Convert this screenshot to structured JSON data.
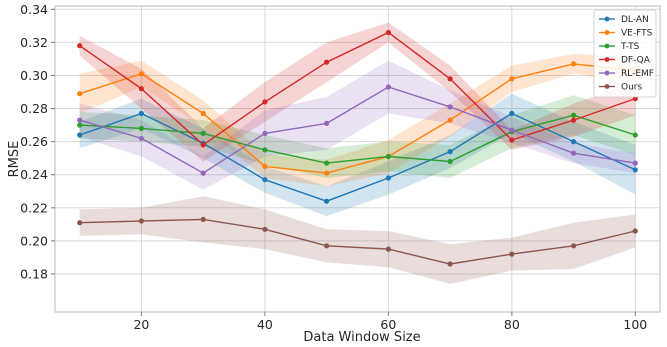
{
  "chart_data": {
    "type": "line",
    "title": "",
    "xlabel": "Data Window Size",
    "ylabel": "RMSE",
    "x": [
      10,
      20,
      30,
      40,
      50,
      60,
      70,
      80,
      90,
      100
    ],
    "xlim": [
      6,
      104
    ],
    "ylim": [
      0.157,
      0.342
    ],
    "xticks": [
      20,
      40,
      60,
      80,
      100
    ],
    "yticks": [
      0.18,
      0.2,
      0.22,
      0.24,
      0.26,
      0.28,
      0.3,
      0.32,
      0.34
    ],
    "xtick_labels": [
      "20",
      "40",
      "60",
      "80",
      "100"
    ],
    "ytick_labels": [
      "0.18",
      "0.20",
      "0.22",
      "0.24",
      "0.26",
      "0.28",
      "0.30",
      "0.32",
      "0.34"
    ],
    "grid": true,
    "legend_position": "top-right",
    "series": [
      {
        "name": "DL-AN",
        "color": "#1f77b4",
        "values": [
          0.264,
          0.277,
          0.259,
          0.237,
          0.224,
          0.238,
          0.254,
          0.277,
          0.26,
          0.243
        ],
        "band": [
          0.008,
          0.009,
          0.009,
          0.008,
          0.009,
          0.01,
          0.01,
          0.012,
          0.012,
          0.015
        ]
      },
      {
        "name": "VE-FTS",
        "color": "#ff7f0e",
        "values": [
          0.289,
          0.301,
          0.277,
          0.245,
          0.241,
          0.251,
          0.273,
          0.298,
          0.307,
          0.303
        ],
        "band": [
          0.012,
          0.008,
          0.008,
          0.007,
          0.008,
          0.01,
          0.01,
          0.008,
          0.006,
          0.008
        ]
      },
      {
        "name": "T-TS",
        "color": "#2ca02c",
        "values": [
          0.27,
          0.268,
          0.265,
          0.255,
          0.247,
          0.251,
          0.248,
          0.266,
          0.276,
          0.264
        ],
        "band": [
          0.008,
          0.008,
          0.008,
          0.009,
          0.009,
          0.009,
          0.01,
          0.01,
          0.012,
          0.012
        ]
      },
      {
        "name": "DF-QA",
        "color": "#d62728",
        "values": [
          0.318,
          0.292,
          0.258,
          0.284,
          0.308,
          0.326,
          0.298,
          0.261,
          0.273,
          0.286
        ],
        "band": [
          0.006,
          0.012,
          0.01,
          0.012,
          0.012,
          0.006,
          0.008,
          0.006,
          0.01,
          0.01
        ]
      },
      {
        "name": "RL-EMF",
        "color": "#9467bd",
        "values": [
          0.273,
          0.262,
          0.241,
          0.265,
          0.271,
          0.293,
          0.281,
          0.267,
          0.253,
          0.247
        ],
        "band": [
          0.01,
          0.011,
          0.01,
          0.014,
          0.016,
          0.016,
          0.01,
          0.008,
          0.006,
          0.006
        ]
      },
      {
        "name": "Ours",
        "color": "#8c564b",
        "values": [
          0.211,
          0.212,
          0.213,
          0.207,
          0.197,
          0.195,
          0.186,
          0.192,
          0.197,
          0.206
        ],
        "band": [
          0.008,
          0.008,
          0.014,
          0.012,
          0.01,
          0.011,
          0.012,
          0.01,
          0.014,
          0.01
        ]
      }
    ]
  }
}
